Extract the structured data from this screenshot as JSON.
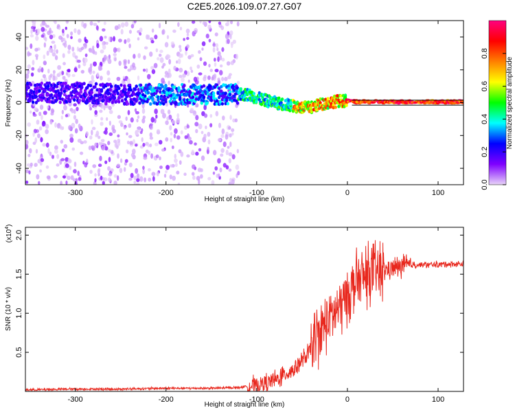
{
  "title": "C2E5.2026.109.07.27.G07",
  "chart_data": [
    {
      "type": "heatmap",
      "name": "spectrogram",
      "xlabel": "Height of straight line (km)",
      "ylabel": "Frequency (Hz)",
      "xlim": [
        -355,
        128
      ],
      "ylim": [
        -50,
        50
      ],
      "xticks": [
        -300,
        -200,
        -100,
        0,
        100
      ],
      "xtick_labels": [
        "-300",
        "-200",
        "-100",
        "0",
        "100"
      ],
      "yticks": [
        -40,
        -20,
        0,
        20,
        40
      ],
      "ytick_labels": [
        "-40",
        "-20",
        "0",
        "20",
        "40"
      ],
      "colorbar": {
        "label": "Normalized spectral amplitude",
        "range": [
          0,
          1
        ],
        "ticks": [
          0.0,
          0.2,
          0.4,
          0.6,
          0.8
        ],
        "tick_labels": [
          "0.0",
          "0.2",
          "0.4",
          "0.6",
          "0.8"
        ],
        "colormap": [
          "#e8d4f8",
          "#7f00ff",
          "#0000ff",
          "#00ffff",
          "#00ff00",
          "#ffff00",
          "#ff8000",
          "#ff0000",
          "#ff0080"
        ]
      },
      "ridge": {
        "x": [
          -350,
          -300,
          -250,
          -200,
          -150,
          -125,
          -110,
          -95,
          -80,
          -70,
          -60,
          -50,
          -40,
          -30,
          -20,
          -10,
          0,
          10,
          30,
          60,
          90,
          128
        ],
        "frequency": [
          6,
          6,
          5,
          5,
          5,
          5,
          5,
          2,
          0,
          -1,
          -2,
          -3,
          -3,
          -1,
          0,
          1,
          1,
          0.5,
          0.5,
          0.5,
          0.5,
          0.5
        ]
      },
      "guide_lines_hz": [
        1.5,
        -1.5
      ]
    },
    {
      "type": "line",
      "name": "snr",
      "xlabel": "Height of straight line (km)",
      "ylabel": "SNR (10 * v/v)",
      "y_multiplier_label": "(x10",
      "y_multiplier_exp": "4",
      "y_multiplier_close": ")",
      "xlim": [
        -355,
        128
      ],
      "ylim": [
        0,
        2.1
      ],
      "xticks": [
        -300,
        -200,
        -100,
        0,
        100
      ],
      "xtick_labels": [
        "-300",
        "-200",
        "-100",
        "0",
        "100"
      ],
      "yticks": [
        0.5,
        1.0,
        1.5,
        2.0
      ],
      "ytick_labels": [
        "0.5",
        "1.0",
        "1.5",
        "2.0"
      ],
      "series": [
        {
          "name": "SNR",
          "color": "#e8281e",
          "x": [
            -355,
            -300,
            -250,
            -200,
            -150,
            -120,
            -100,
            -80,
            -60,
            -45,
            -30,
            -20,
            -10,
            0,
            10,
            25,
            40,
            60,
            75,
            90,
            110,
            128
          ],
          "y": [
            0.02,
            0.03,
            0.03,
            0.04,
            0.04,
            0.05,
            0.08,
            0.14,
            0.28,
            0.45,
            0.75,
            0.95,
            1.05,
            1.25,
            1.4,
            1.5,
            1.55,
            1.6,
            1.62,
            1.62,
            1.63,
            1.63
          ]
        }
      ]
    }
  ]
}
